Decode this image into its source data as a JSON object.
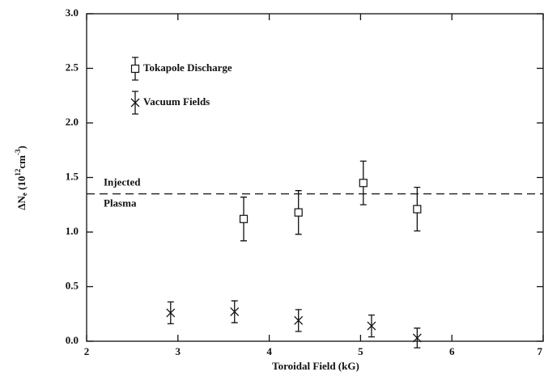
{
  "chart_data": {
    "type": "scatter",
    "xlabel": "Toroidal Field (kG)",
    "ylabel": [
      "ΔN",
      "e",
      " (10",
      "12",
      "cm",
      "-3",
      ")"
    ],
    "xlim": [
      2,
      7
    ],
    "ylim": [
      0,
      3
    ],
    "xticks": [
      2,
      3,
      4,
      5,
      6,
      7
    ],
    "yticks": [
      {
        "value": 0,
        "label": "0.0"
      },
      {
        "value": 0.5,
        "label": "0.5"
      },
      {
        "value": 1,
        "label": "1.0"
      },
      {
        "value": 1.5,
        "label": "1.5"
      },
      {
        "value": 2,
        "label": "2.0"
      },
      {
        "value": 2.5,
        "label": "2.5"
      },
      {
        "value": 3,
        "label": "3.0"
      }
    ],
    "legend": "upper left",
    "series": [
      {
        "name": "Tokapole Discharge",
        "marker": "square",
        "color": "#111111",
        "x": [
          3.72,
          4.32,
          5.03,
          5.62
        ],
        "values": [
          1.12,
          1.18,
          1.45,
          1.21
        ],
        "errors": [
          0.2,
          0.2,
          0.2,
          0.2
        ]
      },
      {
        "name": "Vacuum Fields",
        "marker": "x",
        "color": "#111111",
        "x": [
          2.92,
          3.62,
          4.32,
          5.12,
          5.62
        ],
        "values": [
          0.26,
          0.27,
          0.19,
          0.14,
          0.03
        ],
        "errors": [
          0.1,
          0.1,
          0.1,
          0.1,
          0.09
        ]
      }
    ],
    "reference_line": {
      "value": 1.35,
      "label": [
        "Injected",
        "Plasma"
      ]
    }
  }
}
